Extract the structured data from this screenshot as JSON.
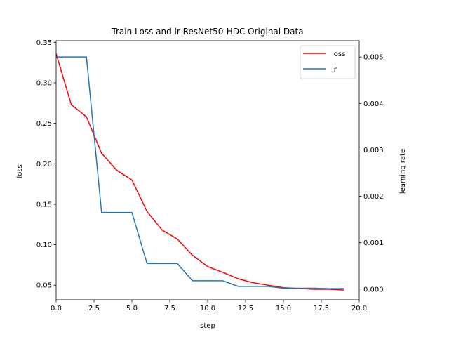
{
  "chart_data": {
    "type": "line",
    "title": "Train Loss and lr ResNet50-HDC Original Data",
    "xlabel": "step",
    "ylabel_left": "loss",
    "ylabel_right": "learning rate",
    "xlim": [
      0,
      20
    ],
    "ylim_left": [
      0.032,
      0.352
    ],
    "ylim_right": [
      -0.00023,
      0.00535
    ],
    "x_ticks": [
      0,
      2.5,
      5,
      7.5,
      10,
      12.5,
      15,
      17.5,
      20
    ],
    "x_tick_labels": [
      "0.0",
      "2.5",
      "5.0",
      "7.5",
      "10.0",
      "12.5",
      "15.0",
      "17.5",
      "20.0"
    ],
    "y_left_ticks": [
      0.05,
      0.1,
      0.15,
      0.2,
      0.25,
      0.3,
      0.35
    ],
    "y_left_tick_labels": [
      "0.05",
      "0.10",
      "0.15",
      "0.20",
      "0.25",
      "0.30",
      "0.35"
    ],
    "y_right_ticks": [
      0,
      0.001,
      0.002,
      0.003,
      0.004,
      0.005
    ],
    "y_right_tick_labels": [
      "0.000",
      "0.001",
      "0.002",
      "0.003",
      "0.004",
      "0.005"
    ],
    "grid": false,
    "legend_position": "top-right",
    "series": [
      {
        "name": "loss",
        "axis": "left",
        "color": "#ff0000",
        "x": [
          0,
          1,
          2,
          3,
          4,
          5,
          6,
          7,
          8,
          9,
          10,
          11,
          12,
          13,
          14,
          15,
          16,
          17,
          18,
          19
        ],
        "values": [
          0.336,
          0.273,
          0.258,
          0.213,
          0.192,
          0.18,
          0.141,
          0.118,
          0.107,
          0.087,
          0.073,
          0.066,
          0.058,
          0.053,
          0.05,
          0.047,
          0.046,
          0.045,
          0.045,
          0.044
        ]
      },
      {
        "name": "lr",
        "axis": "right",
        "color": "#1f77b4",
        "x": [
          0,
          1,
          2,
          3,
          4,
          5,
          6,
          7,
          8,
          9,
          10,
          11,
          12,
          13,
          14,
          15,
          16,
          17,
          18,
          19
        ],
        "values": [
          0.005,
          0.005,
          0.005,
          0.00165,
          0.00165,
          0.00165,
          0.00055,
          0.00055,
          0.00055,
          0.00018,
          0.00018,
          0.00018,
          6e-05,
          6e-05,
          6e-05,
          2e-05,
          2e-05,
          2e-05,
          1e-05,
          1e-05
        ]
      }
    ]
  }
}
